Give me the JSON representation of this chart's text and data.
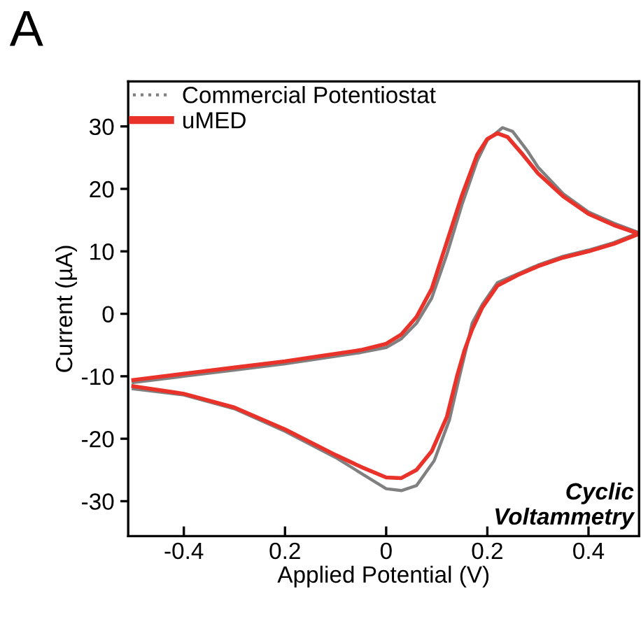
{
  "chart_data": {
    "type": "line",
    "title": "A",
    "xlabel": "Applied Potential (V)",
    "ylabel": "Current (µA)",
    "annotations": [
      "Cyclic\nVoltammetry"
    ],
    "xlim": [
      -0.51,
      0.5
    ],
    "ylim": [
      -35.6,
      37.2
    ],
    "xticks": [
      -0.4,
      {
        "value": -0.2,
        "label": "0.2"
      },
      0,
      0.2,
      0.4
    ],
    "yticks": [
      -30,
      -20,
      -10,
      0,
      10,
      20,
      30
    ],
    "grid": false,
    "legend": "top left",
    "marker": "none",
    "line_style": "solid",
    "series": [
      {
        "name": "Commercial Potentiostat",
        "color": "#808080",
        "x": [
          -0.5,
          -0.4,
          -0.3,
          -0.2,
          -0.1,
          -0.05,
          0,
          0.03,
          0.06,
          0.09,
          0.12,
          0.15,
          0.18,
          0.2,
          0.23,
          0.25,
          0.28,
          0.3,
          0.35,
          0.4,
          0.45,
          0.5,
          0.45,
          0.4,
          0.35,
          0.3,
          0.26,
          0.22,
          0.19,
          0.17,
          0.16,
          0.145,
          0.125,
          0.095,
          0.06,
          0.03,
          0,
          -0.05,
          -0.1,
          -0.2,
          -0.3,
          -0.4,
          -0.5
        ],
        "values": [
          -11,
          -10,
          -9,
          -8,
          -6.8,
          -6.2,
          -5.4,
          -4,
          -1.5,
          2.5,
          9.5,
          17.5,
          24.5,
          27.8,
          29.8,
          29.2,
          26,
          23.5,
          19.2,
          16.3,
          14.5,
          13,
          11.4,
          10.2,
          9.2,
          7.8,
          6.4,
          5,
          1.5,
          -1.5,
          -5,
          -10,
          -17,
          -23.5,
          -27.5,
          -28.3,
          -28,
          -25.5,
          -23,
          -18.8,
          -15.2,
          -13,
          -12
        ]
      },
      {
        "name": "uMED",
        "color": "#e8322a",
        "x": [
          -0.5,
          -0.4,
          -0.3,
          -0.2,
          -0.1,
          -0.05,
          0,
          0.03,
          0.06,
          0.09,
          0.12,
          0.15,
          0.18,
          0.2,
          0.22,
          0.24,
          0.27,
          0.3,
          0.35,
          0.4,
          0.45,
          0.5,
          0.45,
          0.4,
          0.35,
          0.3,
          0.26,
          0.22,
          0.19,
          0.17,
          0.155,
          0.14,
          0.12,
          0.09,
          0.06,
          0.03,
          0,
          -0.05,
          -0.1,
          -0.2,
          -0.3,
          -0.4,
          -0.5
        ],
        "values": [
          -10.6,
          -9.6,
          -8.6,
          -7.6,
          -6.4,
          -5.8,
          -4.8,
          -3.3,
          -0.5,
          4,
          11.5,
          19,
          25.5,
          28,
          28.9,
          28.3,
          25.5,
          22.5,
          18.8,
          16,
          14.2,
          12.8,
          11.2,
          10,
          9,
          7.6,
          6.2,
          4.5,
          1,
          -2.5,
          -5.8,
          -10,
          -16.5,
          -22,
          -25,
          -26.3,
          -26.2,
          -24.5,
          -22.6,
          -18.5,
          -15,
          -12.8,
          -11.6
        ]
      }
    ]
  }
}
